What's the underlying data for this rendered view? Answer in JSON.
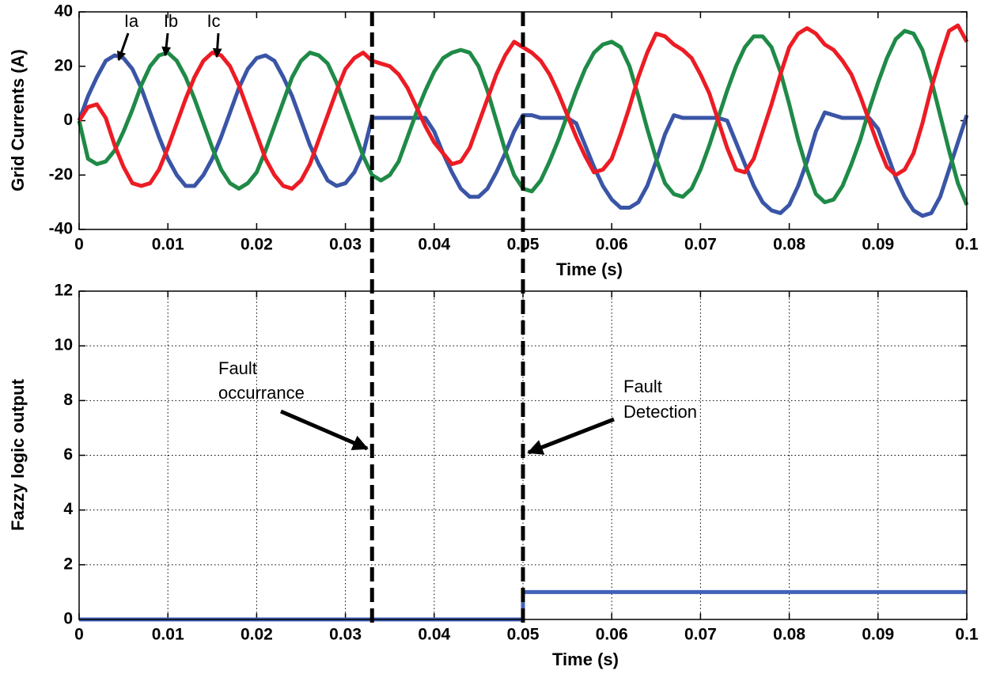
{
  "chart_data": [
    {
      "type": "line",
      "xlabel": "Time (s)",
      "ylabel": "Grid Currents (A)",
      "xlim": [
        0,
        0.1
      ],
      "ylim": [
        -40,
        40
      ],
      "xticks": [
        0,
        0.01,
        0.02,
        0.03,
        0.04,
        0.05,
        0.06,
        0.07,
        0.08,
        0.09,
        0.1
      ],
      "yticks": [
        -40,
        -20,
        0,
        20,
        40
      ],
      "grid": false,
      "x": [
        0,
        0.001,
        0.002,
        0.003,
        0.004,
        0.005,
        0.006,
        0.007,
        0.008,
        0.009,
        0.01,
        0.011,
        0.012,
        0.013,
        0.014,
        0.015,
        0.016,
        0.017,
        0.018,
        0.019,
        0.02,
        0.021,
        0.022,
        0.023,
        0.024,
        0.025,
        0.026,
        0.027,
        0.028,
        0.029,
        0.03,
        0.031,
        0.032,
        0.033,
        0.034,
        0.035,
        0.036,
        0.037,
        0.038,
        0.039,
        0.04,
        0.041,
        0.042,
        0.043,
        0.044,
        0.045,
        0.046,
        0.047,
        0.048,
        0.049,
        0.05,
        0.051,
        0.052,
        0.053,
        0.054,
        0.055,
        0.056,
        0.057,
        0.058,
        0.059,
        0.06,
        0.061,
        0.062,
        0.063,
        0.064,
        0.065,
        0.066,
        0.067,
        0.068,
        0.069,
        0.07,
        0.071,
        0.072,
        0.073,
        0.074,
        0.075,
        0.076,
        0.077,
        0.078,
        0.079,
        0.08,
        0.081,
        0.082,
        0.083,
        0.084,
        0.085,
        0.086,
        0.087,
        0.088,
        0.089,
        0.09,
        0.091,
        0.092,
        0.093,
        0.094,
        0.095,
        0.096,
        0.097,
        0.098,
        0.099,
        0.1
      ],
      "series": [
        {
          "name": "Ia",
          "color": "#3a55a6",
          "values": [
            0,
            9,
            16,
            22,
            24,
            23,
            19,
            12,
            3,
            -6,
            -14,
            -20,
            -24,
            -24,
            -20,
            -14,
            -6,
            3,
            12,
            19,
            23,
            24,
            22,
            16,
            9,
            0,
            -9,
            -16,
            -22,
            -24,
            -23,
            -19,
            -12,
            1,
            1,
            1,
            1,
            1,
            1,
            1,
            -4,
            -12,
            -19,
            -25,
            -28,
            -28,
            -25,
            -19,
            -12,
            -4,
            2,
            2,
            1,
            1,
            1,
            1,
            -1,
            -9,
            -17,
            -24,
            -29,
            -32,
            -32,
            -30,
            -24,
            -15,
            -5,
            2,
            1,
            1,
            1,
            1,
            1,
            0,
            -8,
            -16,
            -24,
            -30,
            -33,
            -34,
            -31,
            -24,
            -15,
            -4,
            3,
            2,
            1,
            1,
            1,
            1,
            -3,
            -12,
            -21,
            -28,
            -33,
            -35,
            -34,
            -28,
            -18,
            -8,
            2
          ]
        },
        {
          "name": "Ib",
          "color": "#1f8a47",
          "values": [
            0,
            -14,
            -16,
            -15,
            -11,
            -4,
            4,
            13,
            20,
            24,
            25,
            22,
            16,
            8,
            -1,
            -10,
            -18,
            -23,
            -25,
            -23,
            -19,
            -11,
            -2,
            7,
            16,
            22,
            25,
            24,
            21,
            14,
            5,
            -4,
            -13,
            -20,
            -22,
            -20,
            -15,
            -6,
            3,
            11,
            18,
            23,
            25,
            26,
            25,
            20,
            11,
            0,
            -11,
            -20,
            -25,
            -26,
            -22,
            -15,
            -7,
            2,
            11,
            19,
            25,
            28,
            29,
            27,
            20,
            9,
            -3,
            -14,
            -23,
            -27,
            -28,
            -25,
            -18,
            -9,
            1,
            11,
            20,
            27,
            31,
            31,
            27,
            18,
            6,
            -7,
            -18,
            -27,
            -30,
            -29,
            -24,
            -16,
            -7,
            4,
            14,
            23,
            30,
            33,
            32,
            26,
            15,
            2,
            -11,
            -23,
            -31
          ]
        },
        {
          "name": "Ic",
          "color": "#ec1c24",
          "values": [
            0,
            5,
            6,
            1,
            -9,
            -17,
            -23,
            -24,
            -23,
            -18,
            -10,
            -1,
            8,
            16,
            22,
            25,
            24,
            20,
            13,
            4,
            -5,
            -14,
            -20,
            -24,
            -25,
            -22,
            -16,
            -7,
            2,
            11,
            19,
            23,
            25,
            22,
            21,
            20,
            17,
            12,
            5,
            -2,
            -8,
            -12,
            -16,
            -15,
            -10,
            -1,
            8,
            17,
            24,
            29,
            27,
            25,
            22,
            17,
            10,
            2,
            -6,
            -13,
            -19,
            -18,
            -14,
            -5,
            5,
            16,
            25,
            32,
            31,
            28,
            26,
            23,
            17,
            10,
            0,
            -10,
            -18,
            -19,
            -14,
            -4,
            6,
            17,
            27,
            32,
            34,
            32,
            28,
            26,
            22,
            17,
            9,
            0,
            -9,
            -17,
            -20,
            -18,
            -12,
            -1,
            12,
            23,
            33,
            35,
            29
          ]
        }
      ]
    },
    {
      "type": "line",
      "xlabel": "Time (s)",
      "ylabel": "Fazzy logic output",
      "xlim": [
        0,
        0.1
      ],
      "ylim": [
        0,
        12
      ],
      "xticks": [
        0,
        0.01,
        0.02,
        0.03,
        0.04,
        0.05,
        0.06,
        0.07,
        0.08,
        0.09,
        0.1
      ],
      "yticks": [
        0,
        2,
        4,
        6,
        8,
        10,
        12
      ],
      "grid": true,
      "x": [
        0,
        0.05,
        0.05,
        0.1
      ],
      "series": [
        {
          "color": "#4262b8",
          "values": [
            0,
            0,
            1,
            1
          ]
        }
      ],
      "vlines": [
        0.033,
        0.05
      ],
      "annotations": [
        [
          "Fault",
          "occurrance"
        ],
        [
          "Fault",
          "Detection"
        ]
      ]
    }
  ]
}
